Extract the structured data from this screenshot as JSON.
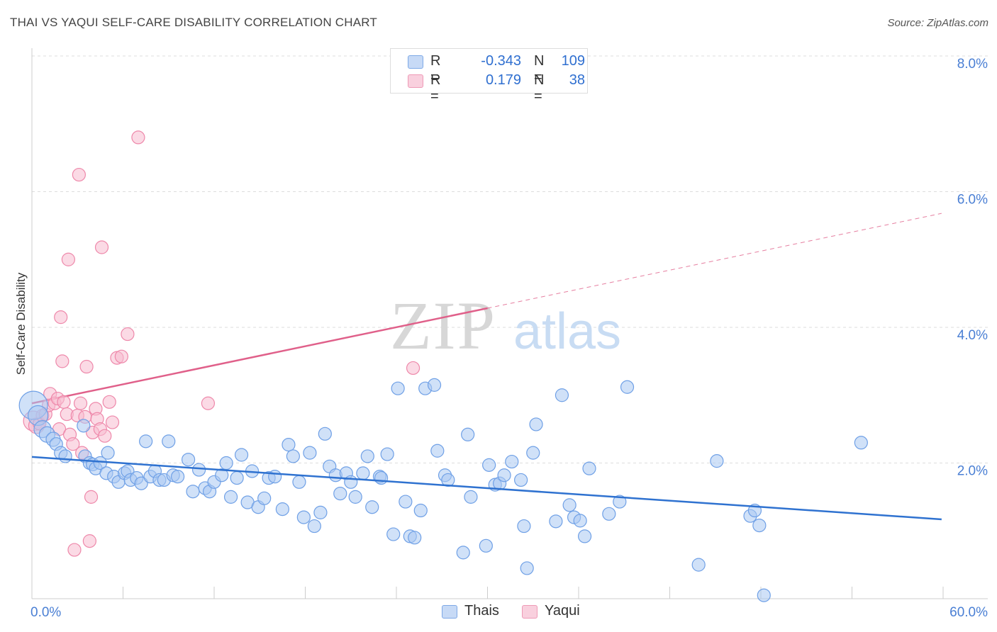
{
  "title": "THAI VS YAQUI SELF-CARE DISABILITY CORRELATION CHART",
  "source": "Source: ZipAtlas.com",
  "watermark": {
    "zip": "ZIP",
    "atlas": "atlas"
  },
  "legend": {
    "rows": [
      {
        "r_label": "R =",
        "r_value": "-0.343",
        "n_label": "N =",
        "n_value": "109"
      },
      {
        "r_label": "R =",
        "r_value": "0.179",
        "n_label": "N =",
        "n_value": "38"
      }
    ]
  },
  "colors": {
    "thais_fill": "#a9c8f2",
    "thais_stroke": "#6fa0e6",
    "thais_line": "#2f72d0",
    "yaqui_fill": "#f7bcd0",
    "yaqui_stroke": "#ee88aa",
    "yaqui_line": "#e0608a",
    "axis_text": "#4a7fd4"
  },
  "chart_data": {
    "type": "scatter",
    "ylabel": "Self-Care Disability",
    "xlim": [
      0,
      60
    ],
    "ylim": [
      0,
      8
    ],
    "x_tick_labels": [
      {
        "value": 0,
        "label": "0.0%"
      },
      {
        "value": 60,
        "label": "60.0%"
      }
    ],
    "y_tick_labels": [
      {
        "value": 2,
        "label": "2.0%"
      },
      {
        "value": 4,
        "label": "4.0%"
      },
      {
        "value": 6,
        "label": "6.0%"
      },
      {
        "value": 8,
        "label": "8.0%"
      }
    ],
    "grid": true,
    "series": [
      {
        "name": "Thais",
        "trend": {
          "x0": 0,
          "y0": 2.09,
          "x1": 59.9,
          "y1": 1.17,
          "dashed_from": null
        },
        "points": [
          [
            0.1,
            2.85,
            20
          ],
          [
            0.4,
            2.7,
            14
          ],
          [
            0.7,
            2.5,
            12
          ],
          [
            1.0,
            2.42,
            11
          ],
          [
            1.4,
            2.35,
            10
          ],
          [
            1.6,
            2.28,
            9
          ],
          [
            1.9,
            2.15,
            9
          ],
          [
            2.2,
            2.1,
            9
          ],
          [
            3.4,
            2.55,
            9
          ],
          [
            3.5,
            2.1,
            9
          ],
          [
            3.8,
            2.0,
            9
          ],
          [
            4.0,
            1.98,
            9
          ],
          [
            4.2,
            1.92,
            9
          ],
          [
            4.5,
            2.0,
            9
          ],
          [
            4.9,
            1.85,
            9
          ],
          [
            5.0,
            2.15,
            9
          ],
          [
            5.4,
            1.8,
            9
          ],
          [
            5.7,
            1.72,
            9
          ],
          [
            6.1,
            1.85,
            9
          ],
          [
            6.3,
            1.88,
            9
          ],
          [
            6.5,
            1.75,
            9
          ],
          [
            6.9,
            1.78,
            9
          ],
          [
            7.2,
            1.7,
            9
          ],
          [
            7.5,
            2.32,
            9
          ],
          [
            7.8,
            1.8,
            9
          ],
          [
            8.1,
            1.88,
            9
          ],
          [
            8.4,
            1.75,
            9
          ],
          [
            8.7,
            1.75,
            9
          ],
          [
            9.0,
            2.32,
            9
          ],
          [
            9.3,
            1.82,
            9
          ],
          [
            9.6,
            1.8,
            9
          ],
          [
            10.3,
            2.05,
            9
          ],
          [
            10.6,
            1.58,
            9
          ],
          [
            11.0,
            1.9,
            9
          ],
          [
            11.4,
            1.63,
            9
          ],
          [
            11.7,
            1.58,
            9
          ],
          [
            12.0,
            1.72,
            9
          ],
          [
            12.5,
            1.82,
            9
          ],
          [
            12.8,
            2.0,
            9
          ],
          [
            13.1,
            1.5,
            9
          ],
          [
            13.5,
            1.78,
            9
          ],
          [
            13.8,
            2.12,
            9
          ],
          [
            14.2,
            1.42,
            9
          ],
          [
            14.5,
            1.88,
            9
          ],
          [
            14.9,
            1.35,
            9
          ],
          [
            15.3,
            1.48,
            9
          ],
          [
            15.6,
            1.78,
            9
          ],
          [
            16.0,
            1.8,
            9
          ],
          [
            16.5,
            1.32,
            9
          ],
          [
            16.9,
            2.27,
            9
          ],
          [
            17.2,
            2.1,
            9
          ],
          [
            17.6,
            1.72,
            9
          ],
          [
            17.9,
            1.2,
            9
          ],
          [
            18.3,
            2.15,
            9
          ],
          [
            18.6,
            1.07,
            9
          ],
          [
            19.0,
            1.27,
            9
          ],
          [
            19.3,
            2.43,
            9
          ],
          [
            19.6,
            1.95,
            9
          ],
          [
            20.0,
            1.82,
            9
          ],
          [
            20.3,
            1.55,
            9
          ],
          [
            20.7,
            1.85,
            9
          ],
          [
            21.0,
            1.72,
            9
          ],
          [
            21.3,
            1.5,
            9
          ],
          [
            21.8,
            1.85,
            9
          ],
          [
            22.1,
            2.1,
            9
          ],
          [
            22.4,
            1.35,
            9
          ],
          [
            22.9,
            1.8,
            9
          ],
          [
            23.0,
            1.78,
            9
          ],
          [
            23.4,
            2.13,
            9
          ],
          [
            23.8,
            0.95,
            9
          ],
          [
            24.1,
            3.1,
            9
          ],
          [
            24.6,
            1.43,
            9
          ],
          [
            24.9,
            0.92,
            9
          ],
          [
            25.2,
            0.9,
            9
          ],
          [
            25.6,
            1.3,
            9
          ],
          [
            25.9,
            3.1,
            9
          ],
          [
            26.5,
            3.15,
            9
          ],
          [
            26.7,
            2.18,
            9
          ],
          [
            27.2,
            1.82,
            9
          ],
          [
            27.4,
            1.75,
            9
          ],
          [
            28.4,
            0.68,
            9
          ],
          [
            28.7,
            2.42,
            9
          ],
          [
            28.9,
            1.5,
            9
          ],
          [
            29.9,
            0.78,
            9
          ],
          [
            30.1,
            1.97,
            9
          ],
          [
            30.5,
            1.68,
            9
          ],
          [
            30.8,
            1.7,
            9
          ],
          [
            31.1,
            1.82,
            9
          ],
          [
            31.6,
            2.02,
            9
          ],
          [
            32.2,
            1.75,
            9
          ],
          [
            32.4,
            1.07,
            9
          ],
          [
            32.6,
            0.45,
            9
          ],
          [
            33.0,
            2.15,
            9
          ],
          [
            33.2,
            2.57,
            9
          ],
          [
            34.5,
            1.14,
            9
          ],
          [
            34.9,
            3.0,
            9
          ],
          [
            35.4,
            1.38,
            9
          ],
          [
            35.7,
            1.2,
            9
          ],
          [
            36.1,
            1.15,
            9
          ],
          [
            36.4,
            0.92,
            9
          ],
          [
            36.7,
            1.92,
            9
          ],
          [
            38.0,
            1.25,
            9
          ],
          [
            38.7,
            1.43,
            9
          ],
          [
            39.2,
            3.12,
            9
          ],
          [
            43.9,
            0.5,
            9
          ],
          [
            45.1,
            2.03,
            9
          ],
          [
            47.3,
            1.22,
            9
          ],
          [
            47.6,
            1.3,
            9
          ],
          [
            47.9,
            1.08,
            9
          ],
          [
            48.2,
            0.05,
            9
          ],
          [
            54.6,
            2.3,
            9
          ]
        ]
      },
      {
        "name": "Yaqui",
        "trend": {
          "x0": 0,
          "y0": 2.88,
          "x1": 59.9,
          "y1": 5.68,
          "dashed_from": 30.0
        },
        "points": [
          [
            0.1,
            2.62,
            14
          ],
          [
            0.3,
            2.55,
            11
          ],
          [
            0.5,
            2.58,
            9
          ],
          [
            0.7,
            2.7,
            9
          ],
          [
            0.9,
            2.72,
            9
          ],
          [
            1.1,
            2.85,
            9
          ],
          [
            1.2,
            3.02,
            9
          ],
          [
            1.5,
            2.88,
            9
          ],
          [
            1.7,
            2.95,
            9
          ],
          [
            1.8,
            2.5,
            9
          ],
          [
            1.9,
            4.15,
            9
          ],
          [
            2.0,
            3.5,
            9
          ],
          [
            2.1,
            2.9,
            9
          ],
          [
            2.3,
            2.72,
            9
          ],
          [
            2.4,
            5.0,
            9
          ],
          [
            2.5,
            2.42,
            9
          ],
          [
            2.7,
            2.28,
            9
          ],
          [
            2.8,
            0.72,
            9
          ],
          [
            3.0,
            2.7,
            9
          ],
          [
            3.1,
            6.25,
            9
          ],
          [
            3.2,
            2.88,
            9
          ],
          [
            3.3,
            2.15,
            9
          ],
          [
            3.5,
            2.68,
            9
          ],
          [
            3.6,
            3.42,
            9
          ],
          [
            3.8,
            0.85,
            9
          ],
          [
            3.9,
            1.5,
            9
          ],
          [
            4.0,
            2.45,
            9
          ],
          [
            4.2,
            2.8,
            9
          ],
          [
            4.3,
            2.65,
            9
          ],
          [
            4.5,
            2.5,
            9
          ],
          [
            4.6,
            5.18,
            9
          ],
          [
            4.8,
            2.4,
            9
          ],
          [
            5.1,
            2.9,
            9
          ],
          [
            5.3,
            2.6,
            9
          ],
          [
            5.6,
            3.55,
            9
          ],
          [
            5.9,
            3.57,
            9
          ],
          [
            6.3,
            3.9,
            9
          ],
          [
            7.0,
            6.8,
            9
          ],
          [
            11.6,
            2.88,
            9
          ],
          [
            25.1,
            3.4,
            9
          ]
        ]
      }
    ]
  }
}
